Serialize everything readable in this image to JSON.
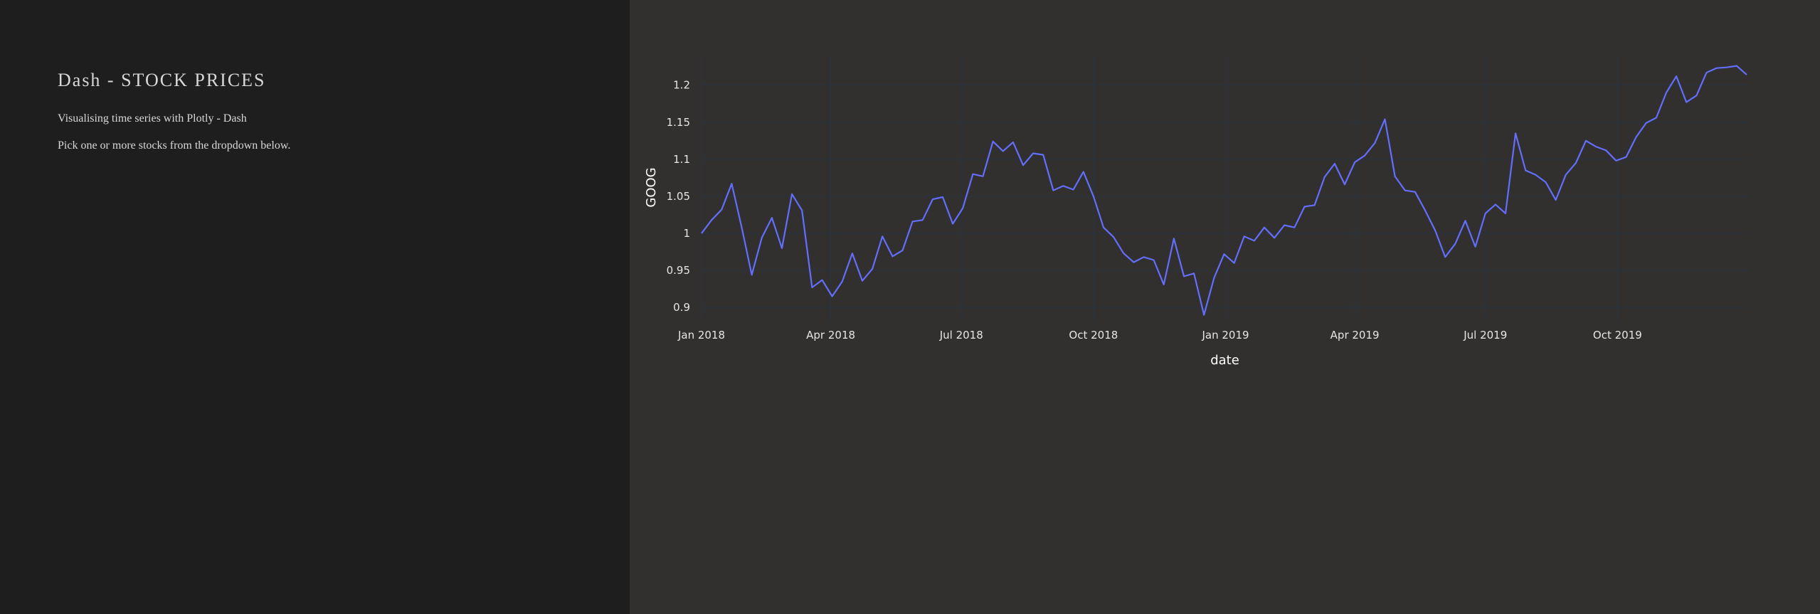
{
  "sidebar": {
    "title": "Dash - STOCK PRICES",
    "description": "Visualising time series with Plotly - Dash",
    "instruction": "Pick one or more stocks from the dropdown below."
  },
  "colors": {
    "sidebar_bg": "#1e1e1e",
    "main_bg": "#31302f",
    "line": "#636efa",
    "grid": "#283442"
  },
  "chart_data": {
    "type": "line",
    "xlabel": "date",
    "ylabel": "GOOG",
    "x_ticks": [
      "Jan 2018",
      "Apr 2018",
      "Jul 2018",
      "Oct 2018",
      "Jan 2019",
      "Apr 2019",
      "Jul 2019",
      "Oct 2019"
    ],
    "y_ticks": [
      "0.9",
      "0.95",
      "1",
      "1.05",
      "1.1",
      "1.15",
      "1.2"
    ],
    "xlim": [
      "2018-01-01",
      "2019-12-31"
    ],
    "ylim": [
      0.88,
      1.24
    ],
    "grid": true,
    "series": [
      {
        "x": [
          "2018-01-01",
          "2018-01-08",
          "2018-01-15",
          "2018-01-22",
          "2018-01-29",
          "2018-02-05",
          "2018-02-12",
          "2018-02-19",
          "2018-02-26",
          "2018-03-05",
          "2018-03-12",
          "2018-03-19",
          "2018-03-26",
          "2018-04-02",
          "2018-04-09",
          "2018-04-16",
          "2018-04-23",
          "2018-04-30",
          "2018-05-07",
          "2018-05-14",
          "2018-05-21",
          "2018-05-28",
          "2018-06-04",
          "2018-06-11",
          "2018-06-18",
          "2018-06-25",
          "2018-07-02",
          "2018-07-09",
          "2018-07-16",
          "2018-07-23",
          "2018-07-30",
          "2018-08-06",
          "2018-08-13",
          "2018-08-20",
          "2018-08-27",
          "2018-09-03",
          "2018-09-10",
          "2018-09-17",
          "2018-09-24",
          "2018-10-01",
          "2018-10-08",
          "2018-10-15",
          "2018-10-22",
          "2018-10-29",
          "2018-11-05",
          "2018-11-12",
          "2018-11-19",
          "2018-11-26",
          "2018-12-03",
          "2018-12-10",
          "2018-12-17",
          "2018-12-24",
          "2018-12-31",
          "2019-01-07",
          "2019-01-14",
          "2019-01-21",
          "2019-01-28",
          "2019-02-04",
          "2019-02-11",
          "2019-02-18",
          "2019-02-25",
          "2019-03-04",
          "2019-03-11",
          "2019-03-18",
          "2019-03-25",
          "2019-04-01",
          "2019-04-08",
          "2019-04-15",
          "2019-04-22",
          "2019-04-29",
          "2019-05-06",
          "2019-05-13",
          "2019-05-20",
          "2019-05-27",
          "2019-06-03",
          "2019-06-10",
          "2019-06-17",
          "2019-06-24",
          "2019-07-01",
          "2019-07-08",
          "2019-07-15",
          "2019-07-22",
          "2019-07-29",
          "2019-08-05",
          "2019-08-12",
          "2019-08-19",
          "2019-08-26",
          "2019-09-02",
          "2019-09-09",
          "2019-09-16",
          "2019-09-23",
          "2019-09-30",
          "2019-10-07",
          "2019-10-14",
          "2019-10-21",
          "2019-10-28",
          "2019-11-04",
          "2019-11-11",
          "2019-11-18",
          "2019-11-25",
          "2019-12-02",
          "2019-12-09",
          "2019-12-16",
          "2019-12-23",
          "2019-12-30"
        ],
        "y": [
          1.0,
          1.018,
          1.032,
          1.067,
          1.008,
          0.944,
          0.994,
          1.021,
          0.98,
          1.053,
          1.031,
          0.927,
          0.937,
          0.915,
          0.935,
          0.973,
          0.936,
          0.952,
          0.996,
          0.969,
          0.977,
          1.016,
          1.018,
          1.046,
          1.049,
          1.013,
          1.034,
          1.08,
          1.077,
          1.124,
          1.111,
          1.123,
          1.092,
          1.108,
          1.106,
          1.058,
          1.064,
          1.059,
          1.083,
          1.05,
          1.008,
          0.995,
          0.973,
          0.961,
          0.968,
          0.964,
          0.931,
          0.993,
          0.942,
          0.946,
          0.89,
          0.94,
          0.972,
          0.96,
          0.996,
          0.99,
          1.008,
          0.994,
          1.011,
          1.008,
          1.036,
          1.038,
          1.076,
          1.094,
          1.066,
          1.096,
          1.105,
          1.122,
          1.154,
          1.077,
          1.058,
          1.056,
          1.031,
          1.004,
          0.968,
          0.986,
          1.017,
          0.982,
          1.027,
          1.039,
          1.027,
          1.135,
          1.085,
          1.079,
          1.069,
          1.045,
          1.079,
          1.095,
          1.125,
          1.117,
          1.112,
          1.098,
          1.103,
          1.13,
          1.149,
          1.156,
          1.19,
          1.212,
          1.177,
          1.186,
          1.217,
          1.223,
          1.224,
          1.226,
          1.214
        ]
      }
    ]
  }
}
